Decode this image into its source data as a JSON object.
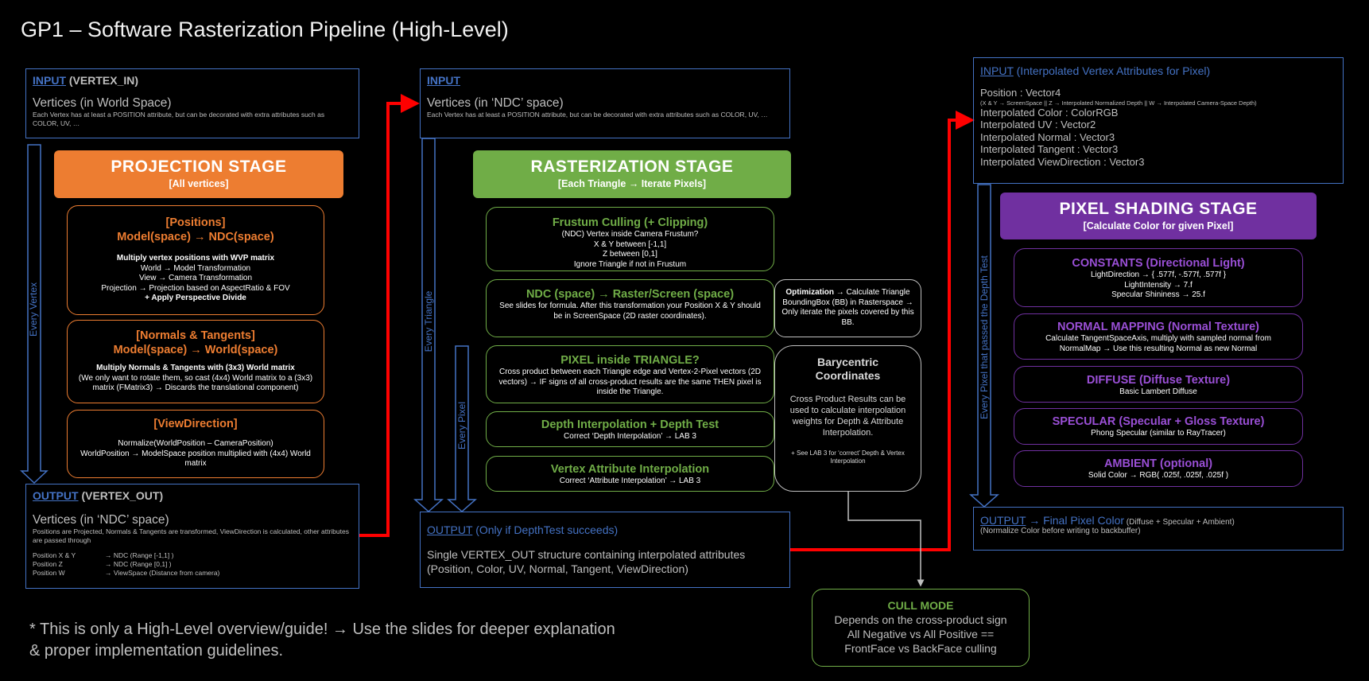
{
  "title": "GP1 – Software Rasterization Pipeline (High-Level)",
  "col1": {
    "input_link": "INPUT",
    "input_name": "(VERTEX_IN)",
    "input_sub": "Vertices (in World Space)",
    "input_note": "Each Vertex has at least a POSITION attribute, but can be decorated with extra attributes such as COLOR, UV, …",
    "loop_label": "Every Vertex",
    "stage_title": "PROJECTION STAGE",
    "stage_sub": "[All vertices]",
    "positions": {
      "title1": "[Positions]",
      "title2": "Model(space) → NDC(space)",
      "l1": "Multiply vertex positions with WVP matrix",
      "l2": "World → Model Transformation",
      "l3": "View → Camera Transformation",
      "l4": "Projection → Projection based on AspectRatio & FOV",
      "l5": "+ Apply Perspective Divide"
    },
    "normals": {
      "title1": "[Normals & Tangents]",
      "title2": "Model(space) → World(space)",
      "l1": "Multiply Normals & Tangents with (3x3) World matrix",
      "l2": "(We only want to rotate them, so cast (4x4) World matrix to a (3x3) matrix (FMatrix3) → Discards the translational component)"
    },
    "viewdir": {
      "title": "[ViewDirection]",
      "l1": "Normalize(WorldPosition – CameraPosition)",
      "l2": "WorldPosition → ModelSpace position multiplied with (4x4) World matrix"
    },
    "output_link": "OUTPUT",
    "output_name": "(VERTEX_OUT)",
    "output_sub": "Vertices (in ‘NDC’ space)",
    "output_note": "Positions are Projected, Normals & Tangents are transformed, ViewDirection is calculated, other attributes are passed through",
    "rows": [
      {
        "k": "Position X & Y",
        "v": "→ NDC (Range [-1,1] )"
      },
      {
        "k": "Position Z",
        "v": "→ NDC (Range [0,1] )"
      },
      {
        "k": "Position W",
        "v": "→ ViewSpace (Distance from camera)"
      }
    ]
  },
  "col2": {
    "input_link": "INPUT",
    "input_sub": "Vertices (in ‘NDC’ space)",
    "input_note": "Each Vertex has at least a POSITION attribute, but can be decorated with extra attributes such as COLOR, UV, …",
    "loop_triangle": "Every Triangle",
    "loop_pixel": "Every Pixel",
    "stage_title": "RASTERIZATION STAGE",
    "stage_sub": "[Each Triangle → Iterate Pixels]",
    "frustum": {
      "title": "Frustum Culling (+ Clipping)",
      "l1": "(NDC) Vertex inside Camera Frustum?",
      "l2": "X & Y between [-1,1]",
      "l3": "Z between [0,1]",
      "l4": "Ignore Triangle if not in Frustum"
    },
    "ndc": {
      "title": "NDC (space) → Raster/Screen (space)",
      "l1": "See slides for formula. After this transformation your Position X & Y should be in ScreenSpace (2D raster coordinates)."
    },
    "opt": {
      "bold": "Optimization",
      "l1": " → Calculate Triangle BoundingBox (BB) in Rasterspace → Only iterate the pixels covered by this BB."
    },
    "pixel": {
      "title": "PIXEL inside TRIANGLE?",
      "l1": "Cross product between each Triangle edge and Vertex-2-Pixel vectors (2D vectors) → IF signs of all cross-product results are the same THEN pixel is inside the Triangle."
    },
    "bary": {
      "title": "Barycentric Coordinates",
      "l1": "Cross Product Results can be used to calculate interpolation weights for Depth & Attribute Interpolation.",
      "l2": "+ See LAB 3 for ‘correct’ Depth & Vertex Interpolation"
    },
    "depth": {
      "title": "Depth Interpolation + Depth Test",
      "l1": "Correct ‘Depth Interpolation’ → LAB 3"
    },
    "vattr": {
      "title": "Vertex Attribute Interpolation",
      "l1": "Correct ‘Attribute Interpolation’ → LAB 3"
    },
    "output_link": "OUTPUT",
    "output_rest": " (Only if DepthTest succeeds)",
    "output_l1": "Single VERTEX_OUT structure containing interpolated attributes",
    "output_l2": "(Position, Color, UV, Normal, Tangent, ViewDirection)"
  },
  "cull": {
    "title": "CULL MODE",
    "l1": "Depends on the cross-product sign",
    "l2": "All Negative vs All Positive ==",
    "l3": "FrontFace vs BackFace culling"
  },
  "col3": {
    "input_link": "INPUT",
    "input_rest": " (Interpolated Vertex Attributes for Pixel)",
    "a1": "Position : Vector4",
    "a1_note": "(X & Y → ScreenSpace || Z → Interpolated Normalized Depth || W → Interpolated Camera-Space Depth)",
    "a2": "Interpolated Color : ColorRGB",
    "a3": "Interpolated UV : Vector2",
    "a4": "Interpolated Normal : Vector3",
    "a5": "Interpolated Tangent : Vector3",
    "a6": "Interpolated ViewDirection : Vector3",
    "loop_label": "Every Pixel that passed the Depth Test",
    "stage_title": "PIXEL SHADING STAGE",
    "stage_sub": "[Calculate Color for given Pixel]",
    "constants": {
      "title": "CONSTANTS (Directional Light)",
      "l1": "LightDirection → { .577f, -.577f, .577f }",
      "l2": "LightIntensity → 7.f",
      "l3": "Specular Shininess → 25.f"
    },
    "normalmap": {
      "title": "NORMAL MAPPING (Normal Texture)",
      "l1": "Calculate TangentSpaceAxis, multiply with sampled normal from NormalMap → Use this resulting Normal as new Normal"
    },
    "diffuse": {
      "title": "DIFFUSE (Diffuse Texture)",
      "l1": "Basic Lambert Diffuse"
    },
    "specular": {
      "title": "SPECULAR (Specular + Gloss Texture)",
      "l1": "Phong Specular (similar to RayTracer)"
    },
    "ambient": {
      "title": "AMBIENT  (optional)",
      "l1": "Solid Color → RGB( .025f, .025f, .025f )"
    },
    "output_link": "OUTPUT",
    "output_rest": " → Final Pixel Color",
    "output_small": " (Diffuse + Specular + Ambient)",
    "output_note": "(Normalize Color before writing to backbuffer)"
  },
  "footer": {
    "l1": "* This is only a High-Level overview/guide! → Use the slides for deeper explanation",
    "l2": "& proper implementation guidelines."
  },
  "colors": {
    "blue": "#4472c4",
    "orange": "#ed7d31",
    "green": "#70ad47",
    "purple": "#7030a0",
    "red": "#ff0000"
  }
}
